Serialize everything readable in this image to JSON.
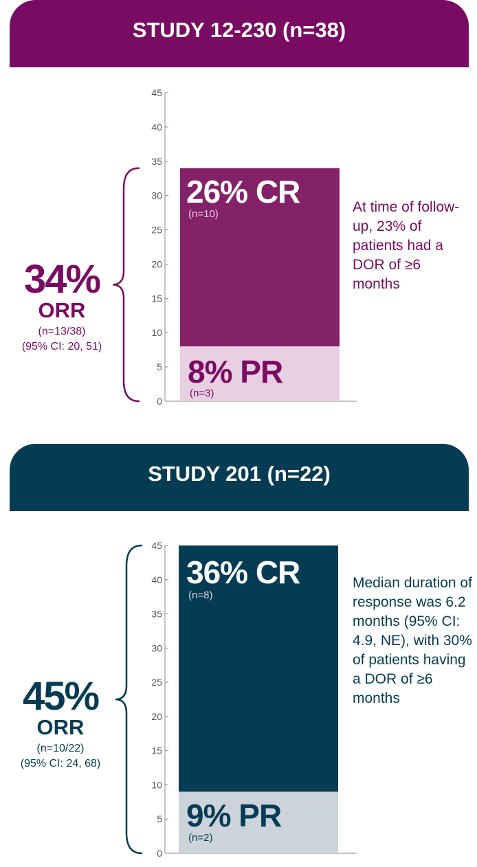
{
  "colors": {
    "study1_primary": "#7a0b63",
    "study1_cr": "#832169",
    "study1_pr": "#e8cfe2",
    "study2_primary": "#053c54",
    "study2_cr": "#053c54",
    "study2_pr": "#cdd3db"
  },
  "chart_data": [
    {
      "type": "bar",
      "title": "STUDY  12-230 (n=38)",
      "stacked": true,
      "ylim": [
        0,
        45
      ],
      "yticks": [
        "0",
        "5",
        "10",
        "15",
        "20",
        "25",
        "30",
        "35",
        "40",
        "45"
      ],
      "series": [
        {
          "value": 8,
          "label": "8% PR",
          "n": "(n=3)"
        },
        {
          "value": 26,
          "label": "26% CR",
          "n": "(n=10)"
        }
      ],
      "orr": {
        "pct": "34%",
        "label": "ORR",
        "n": "(n=13/38)",
        "ci": "(95% CI: 20, 51)"
      },
      "note": "At time of follow-up, 23% of patients had a DOR of ≥6 months"
    },
    {
      "type": "bar",
      "title": "STUDY  201 (n=22)",
      "stacked": true,
      "ylim": [
        0,
        45
      ],
      "yticks": [
        "0",
        "5",
        "10",
        "15",
        "20",
        "25",
        "30",
        "35",
        "40",
        "45"
      ],
      "series": [
        {
          "value": 9,
          "label": "9% PR",
          "n": "(n=2)"
        },
        {
          "value": 36,
          "label": "36% CR",
          "n": "(n=8)"
        }
      ],
      "orr": {
        "pct": "45%",
        "label": "ORR",
        "n": "(n=10/22)",
        "ci": "(95% CI: 24, 68)"
      },
      "note": "Median duration of response was 6.2 months (95% CI: 4.9, NE), with 30% of patients having a DOR of ≥6 months"
    }
  ]
}
